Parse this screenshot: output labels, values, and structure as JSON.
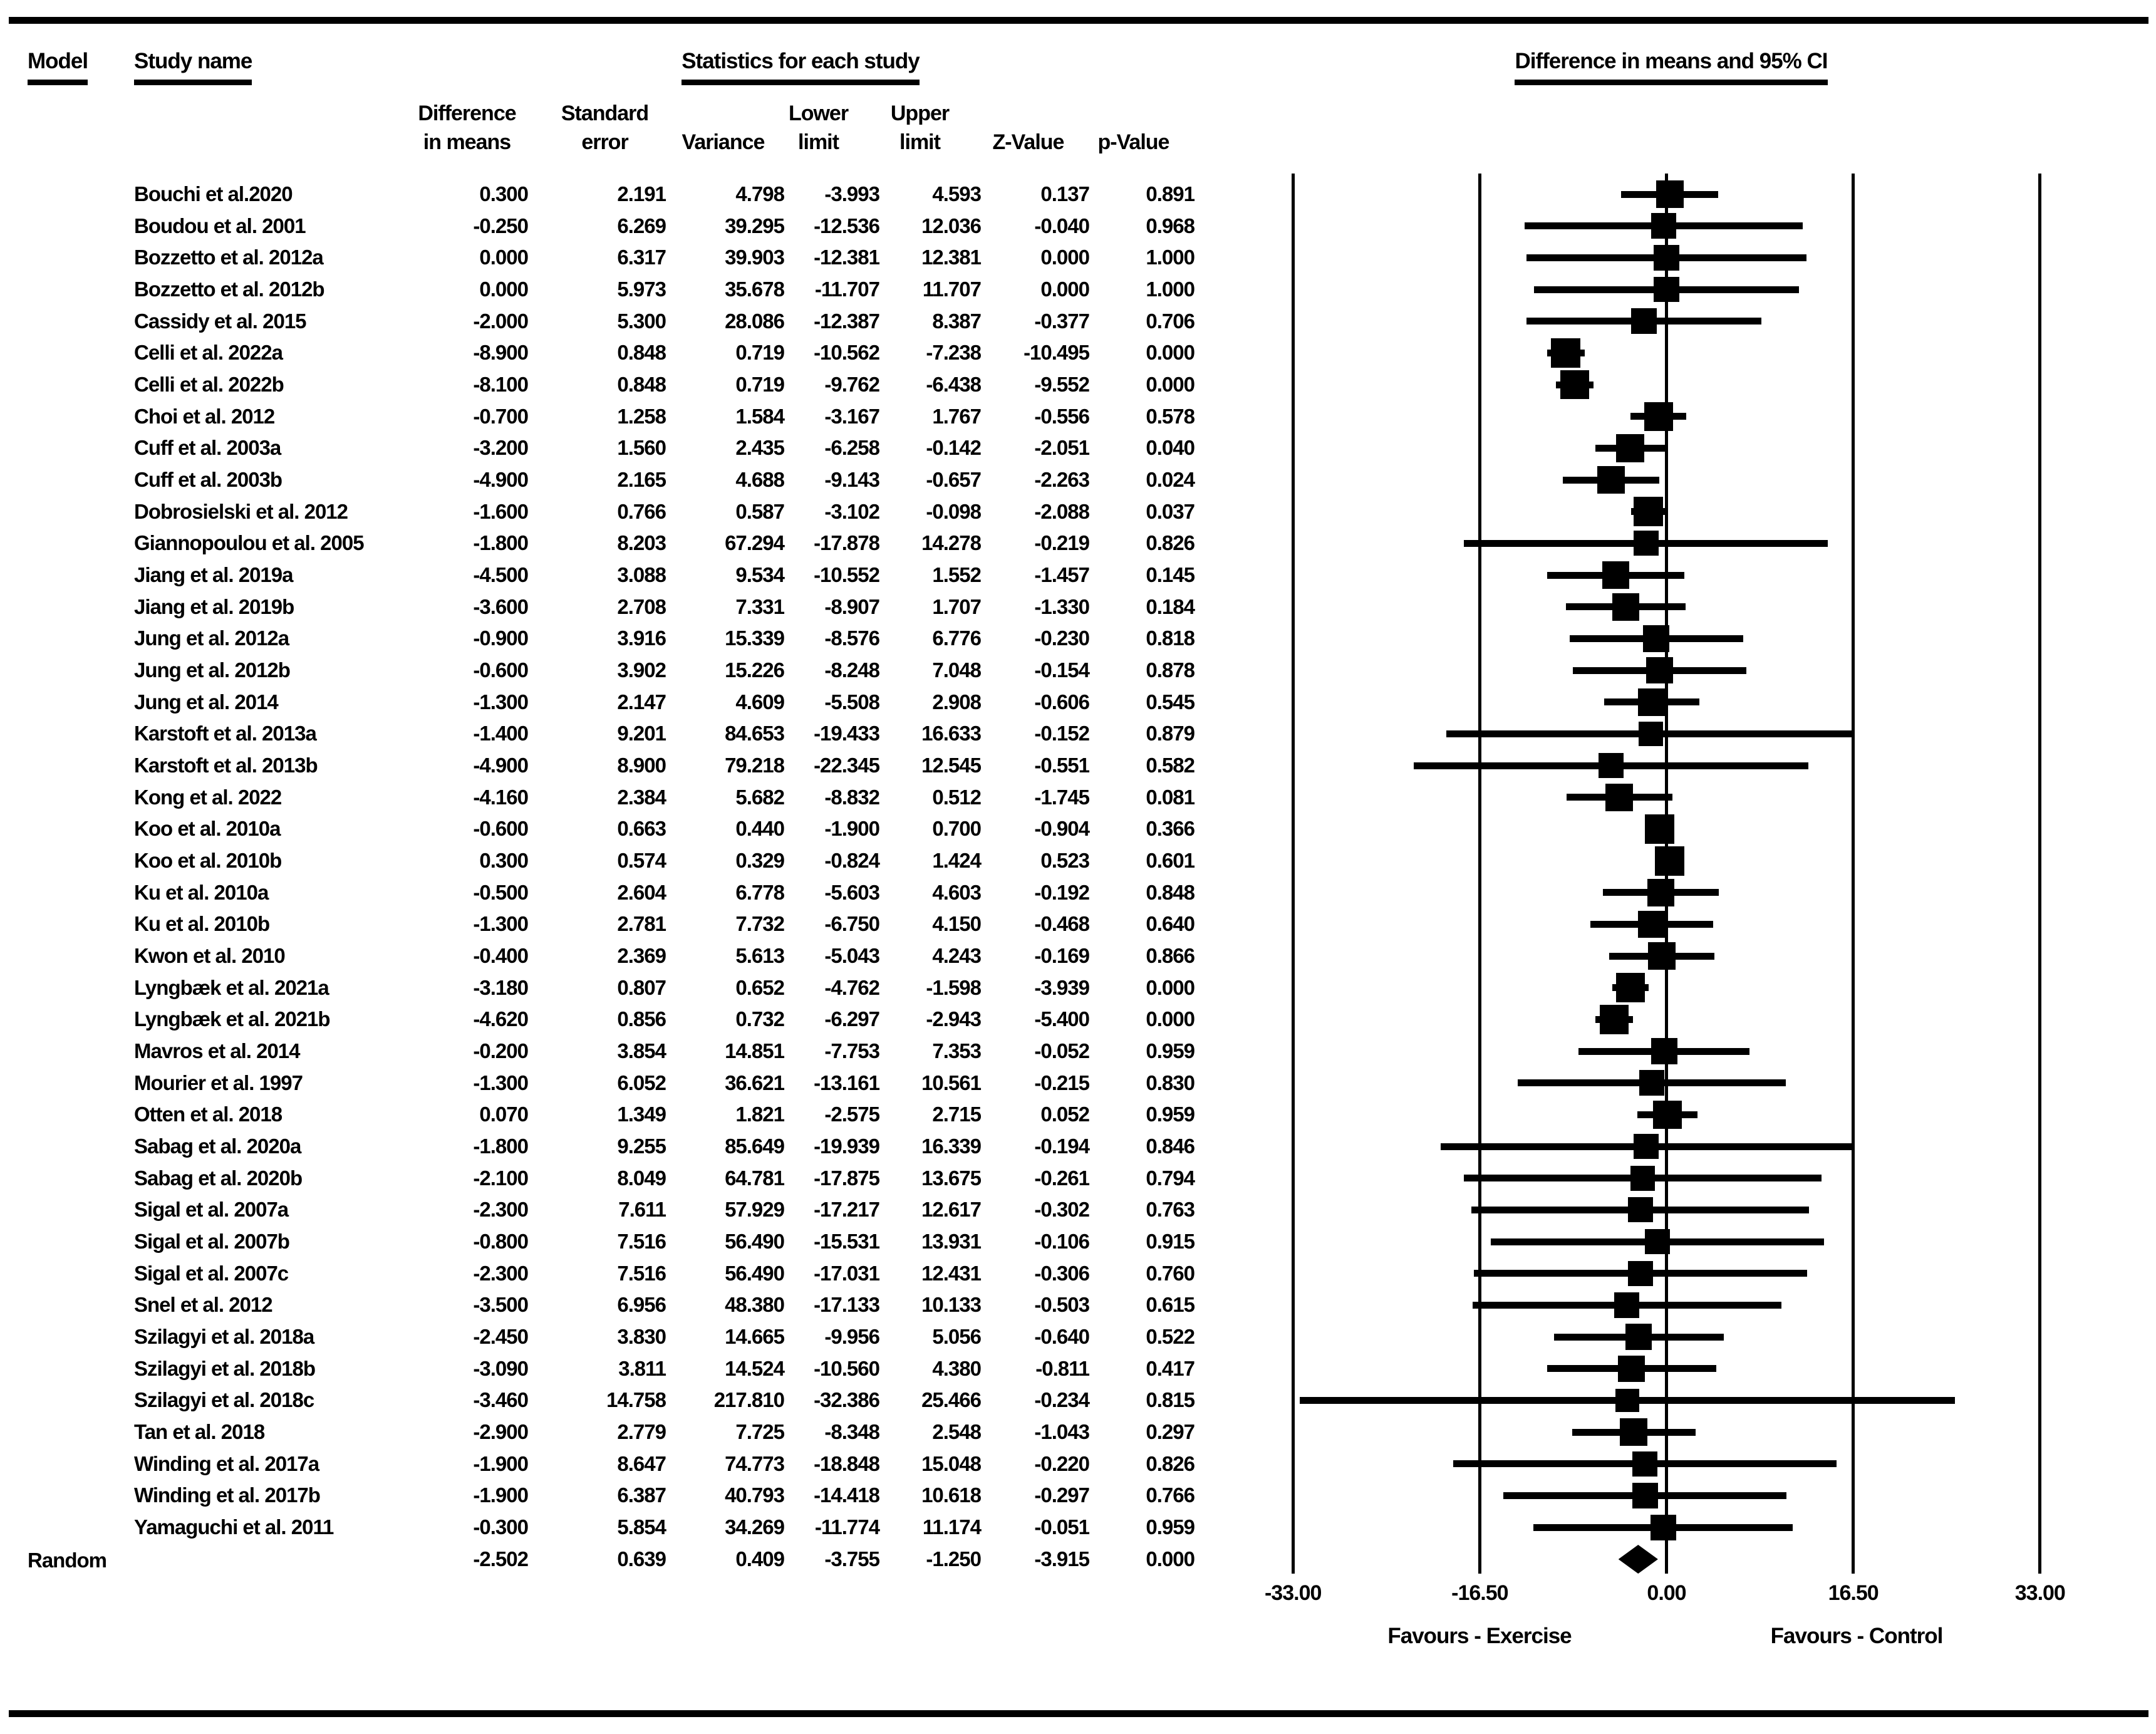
{
  "header": {
    "model_label": "Model",
    "study_label": "Study name",
    "stats_label": "Statistics for each study",
    "plot_label": "Difference in means and 95% CI",
    "columns": [
      {
        "line1": "Difference",
        "line2": "in means"
      },
      {
        "line1": "Standard",
        "line2": "error"
      },
      {
        "line1": "",
        "line2": "Variance"
      },
      {
        "line1": "Lower",
        "line2": "limit"
      },
      {
        "line1": "Upper",
        "line2": "limit"
      },
      {
        "line1": "",
        "line2": "Z-Value"
      },
      {
        "line1": "",
        "line2": "p-Value"
      }
    ]
  },
  "summary_row": {
    "model_label": "Random"
  },
  "axis": {
    "ticks": [
      "-33.00",
      "-16.50",
      "0.00",
      "16.50",
      "33.00"
    ],
    "tick_values": [
      -33,
      -16.5,
      0,
      16.5,
      33
    ],
    "favours_left": "Favours - Exercise",
    "favours_right": "Favours - Control"
  },
  "colors": {
    "ink": "#000000",
    "background": "#ffffff"
  },
  "chart_data": {
    "type": "forest",
    "title": "Difference in means and 95% CI",
    "xlabel_left": "Favours - Exercise",
    "xlabel_right": "Favours - Control",
    "xlim": [
      -33,
      33
    ],
    "x_ticks": [
      -33,
      -16.5,
      0,
      16.5,
      33
    ],
    "columns": [
      "Difference in means",
      "Standard error",
      "Variance",
      "Lower limit",
      "Upper limit",
      "Z-Value",
      "p-Value"
    ],
    "studies": [
      {
        "name": "Bouchi et al.2020",
        "diff": "0.300",
        "se": "2.191",
        "variance": "4.798",
        "lower": "-3.993",
        "upper": "4.593",
        "z": "0.137",
        "p": "0.891"
      },
      {
        "name": "Boudou et al. 2001",
        "diff": "-0.250",
        "se": "6.269",
        "variance": "39.295",
        "lower": "-12.536",
        "upper": "12.036",
        "z": "-0.040",
        "p": "0.968"
      },
      {
        "name": "Bozzetto et al. 2012a",
        "diff": "0.000",
        "se": "6.317",
        "variance": "39.903",
        "lower": "-12.381",
        "upper": "12.381",
        "z": "0.000",
        "p": "1.000"
      },
      {
        "name": "Bozzetto et al. 2012b",
        "diff": "0.000",
        "se": "5.973",
        "variance": "35.678",
        "lower": "-11.707",
        "upper": "11.707",
        "z": "0.000",
        "p": "1.000"
      },
      {
        "name": "Cassidy et al. 2015",
        "diff": "-2.000",
        "se": "5.300",
        "variance": "28.086",
        "lower": "-12.387",
        "upper": "8.387",
        "z": "-0.377",
        "p": "0.706"
      },
      {
        "name": "Celli et al. 2022a",
        "diff": "-8.900",
        "se": "0.848",
        "variance": "0.719",
        "lower": "-10.562",
        "upper": "-7.238",
        "z": "-10.495",
        "p": "0.000"
      },
      {
        "name": "Celli et al. 2022b",
        "diff": "-8.100",
        "se": "0.848",
        "variance": "0.719",
        "lower": "-9.762",
        "upper": "-6.438",
        "z": "-9.552",
        "p": "0.000"
      },
      {
        "name": "Choi et al. 2012",
        "diff": "-0.700",
        "se": "1.258",
        "variance": "1.584",
        "lower": "-3.167",
        "upper": "1.767",
        "z": "-0.556",
        "p": "0.578"
      },
      {
        "name": "Cuff et al. 2003a",
        "diff": "-3.200",
        "se": "1.560",
        "variance": "2.435",
        "lower": "-6.258",
        "upper": "-0.142",
        "z": "-2.051",
        "p": "0.040"
      },
      {
        "name": "Cuff et al. 2003b",
        "diff": "-4.900",
        "se": "2.165",
        "variance": "4.688",
        "lower": "-9.143",
        "upper": "-0.657",
        "z": "-2.263",
        "p": "0.024"
      },
      {
        "name": "Dobrosielski et al. 2012",
        "diff": "-1.600",
        "se": "0.766",
        "variance": "0.587",
        "lower": "-3.102",
        "upper": "-0.098",
        "z": "-2.088",
        "p": "0.037"
      },
      {
        "name": "Giannopoulou et al. 2005",
        "diff": "-1.800",
        "se": "8.203",
        "variance": "67.294",
        "lower": "-17.878",
        "upper": "14.278",
        "z": "-0.219",
        "p": "0.826"
      },
      {
        "name": "Jiang et al. 2019a",
        "diff": "-4.500",
        "se": "3.088",
        "variance": "9.534",
        "lower": "-10.552",
        "upper": "1.552",
        "z": "-1.457",
        "p": "0.145"
      },
      {
        "name": "Jiang et al. 2019b",
        "diff": "-3.600",
        "se": "2.708",
        "variance": "7.331",
        "lower": "-8.907",
        "upper": "1.707",
        "z": "-1.330",
        "p": "0.184"
      },
      {
        "name": "Jung et al. 2012a",
        "diff": "-0.900",
        "se": "3.916",
        "variance": "15.339",
        "lower": "-8.576",
        "upper": "6.776",
        "z": "-0.230",
        "p": "0.818"
      },
      {
        "name": "Jung et al. 2012b",
        "diff": "-0.600",
        "se": "3.902",
        "variance": "15.226",
        "lower": "-8.248",
        "upper": "7.048",
        "z": "-0.154",
        "p": "0.878"
      },
      {
        "name": "Jung et al. 2014",
        "diff": "-1.300",
        "se": "2.147",
        "variance": "4.609",
        "lower": "-5.508",
        "upper": "2.908",
        "z": "-0.606",
        "p": "0.545"
      },
      {
        "name": "Karstoft et al. 2013a",
        "diff": "-1.400",
        "se": "9.201",
        "variance": "84.653",
        "lower": "-19.433",
        "upper": "16.633",
        "z": "-0.152",
        "p": "0.879"
      },
      {
        "name": "Karstoft et al. 2013b",
        "diff": "-4.900",
        "se": "8.900",
        "variance": "79.218",
        "lower": "-22.345",
        "upper": "12.545",
        "z": "-0.551",
        "p": "0.582"
      },
      {
        "name": "Kong et al. 2022",
        "diff": "-4.160",
        "se": "2.384",
        "variance": "5.682",
        "lower": "-8.832",
        "upper": "0.512",
        "z": "-1.745",
        "p": "0.081"
      },
      {
        "name": "Koo et al. 2010a",
        "diff": "-0.600",
        "se": "0.663",
        "variance": "0.440",
        "lower": "-1.900",
        "upper": "0.700",
        "z": "-0.904",
        "p": "0.366"
      },
      {
        "name": "Koo et al. 2010b",
        "diff": "0.300",
        "se": "0.574",
        "variance": "0.329",
        "lower": "-0.824",
        "upper": "1.424",
        "z": "0.523",
        "p": "0.601"
      },
      {
        "name": "Ku et al. 2010a",
        "diff": "-0.500",
        "se": "2.604",
        "variance": "6.778",
        "lower": "-5.603",
        "upper": "4.603",
        "z": "-0.192",
        "p": "0.848"
      },
      {
        "name": "Ku et al. 2010b",
        "diff": "-1.300",
        "se": "2.781",
        "variance": "7.732",
        "lower": "-6.750",
        "upper": "4.150",
        "z": "-0.468",
        "p": "0.640"
      },
      {
        "name": "Kwon et al. 2010",
        "diff": "-0.400",
        "se": "2.369",
        "variance": "5.613",
        "lower": "-5.043",
        "upper": "4.243",
        "z": "-0.169",
        "p": "0.866"
      },
      {
        "name": "Lyngbæk et al. 2021a",
        "diff": "-3.180",
        "se": "0.807",
        "variance": "0.652",
        "lower": "-4.762",
        "upper": "-1.598",
        "z": "-3.939",
        "p": "0.000"
      },
      {
        "name": "Lyngbæk et al. 2021b",
        "diff": "-4.620",
        "se": "0.856",
        "variance": "0.732",
        "lower": "-6.297",
        "upper": "-2.943",
        "z": "-5.400",
        "p": "0.000"
      },
      {
        "name": "Mavros et al. 2014",
        "diff": "-0.200",
        "se": "3.854",
        "variance": "14.851",
        "lower": "-7.753",
        "upper": "7.353",
        "z": "-0.052",
        "p": "0.959"
      },
      {
        "name": "Mourier et al. 1997",
        "diff": "-1.300",
        "se": "6.052",
        "variance": "36.621",
        "lower": "-13.161",
        "upper": "10.561",
        "z": "-0.215",
        "p": "0.830"
      },
      {
        "name": "Otten et al. 2018",
        "diff": "0.070",
        "se": "1.349",
        "variance": "1.821",
        "lower": "-2.575",
        "upper": "2.715",
        "z": "0.052",
        "p": "0.959"
      },
      {
        "name": "Sabag et al. 2020a",
        "diff": "-1.800",
        "se": "9.255",
        "variance": "85.649",
        "lower": "-19.939",
        "upper": "16.339",
        "z": "-0.194",
        "p": "0.846"
      },
      {
        "name": "Sabag et al. 2020b",
        "diff": "-2.100",
        "se": "8.049",
        "variance": "64.781",
        "lower": "-17.875",
        "upper": "13.675",
        "z": "-0.261",
        "p": "0.794"
      },
      {
        "name": "Sigal et al. 2007a",
        "diff": "-2.300",
        "se": "7.611",
        "variance": "57.929",
        "lower": "-17.217",
        "upper": "12.617",
        "z": "-0.302",
        "p": "0.763"
      },
      {
        "name": "Sigal et al. 2007b",
        "diff": "-0.800",
        "se": "7.516",
        "variance": "56.490",
        "lower": "-15.531",
        "upper": "13.931",
        "z": "-0.106",
        "p": "0.915"
      },
      {
        "name": "Sigal et al. 2007c",
        "diff": "-2.300",
        "se": "7.516",
        "variance": "56.490",
        "lower": "-17.031",
        "upper": "12.431",
        "z": "-0.306",
        "p": "0.760"
      },
      {
        "name": "Snel et al. 2012",
        "diff": "-3.500",
        "se": "6.956",
        "variance": "48.380",
        "lower": "-17.133",
        "upper": "10.133",
        "z": "-0.503",
        "p": "0.615"
      },
      {
        "name": "Szilagyi et al. 2018a",
        "diff": "-2.450",
        "se": "3.830",
        "variance": "14.665",
        "lower": "-9.956",
        "upper": "5.056",
        "z": "-0.640",
        "p": "0.522"
      },
      {
        "name": "Szilagyi et al. 2018b",
        "diff": "-3.090",
        "se": "3.811",
        "variance": "14.524",
        "lower": "-10.560",
        "upper": "4.380",
        "z": "-0.811",
        "p": "0.417"
      },
      {
        "name": "Szilagyi et al. 2018c",
        "diff": "-3.460",
        "se": "14.758",
        "variance": "217.810",
        "lower": "-32.386",
        "upper": "25.466",
        "z": "-0.234",
        "p": "0.815"
      },
      {
        "name": "Tan et al. 2018",
        "diff": "-2.900",
        "se": "2.779",
        "variance": "7.725",
        "lower": "-8.348",
        "upper": "2.548",
        "z": "-1.043",
        "p": "0.297"
      },
      {
        "name": "Winding et al. 2017a",
        "diff": "-1.900",
        "se": "8.647",
        "variance": "74.773",
        "lower": "-18.848",
        "upper": "15.048",
        "z": "-0.220",
        "p": "0.826"
      },
      {
        "name": "Winding et al. 2017b",
        "diff": "-1.900",
        "se": "6.387",
        "variance": "40.793",
        "lower": "-14.418",
        "upper": "10.618",
        "z": "-0.297",
        "p": "0.766"
      },
      {
        "name": "Yamaguchi et al. 2011",
        "diff": "-0.300",
        "se": "5.854",
        "variance": "34.269",
        "lower": "-11.774",
        "upper": "11.174",
        "z": "-0.051",
        "p": "0.959"
      }
    ],
    "summary": {
      "model": "Random",
      "diff": "-2.502",
      "se": "0.639",
      "variance": "0.409",
      "lower": "-3.755",
      "upper": "-1.250",
      "z": "-3.915",
      "p": "0.000"
    }
  }
}
